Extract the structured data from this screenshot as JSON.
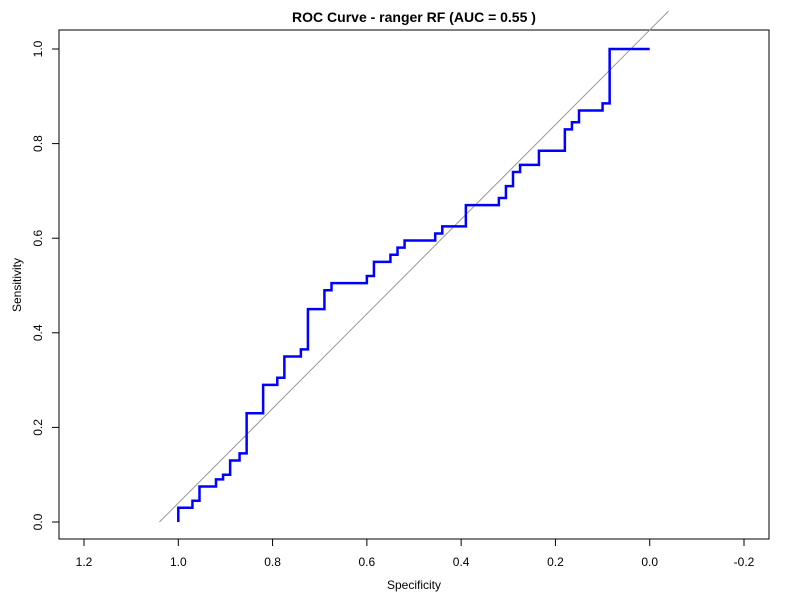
{
  "chart_data": {
    "type": "line",
    "title": "ROC Curve - ranger RF (AUC = 0.55 )",
    "xlabel": "Specificity",
    "ylabel": "Sensitivity",
    "xlim": [
      1.2,
      -0.2
    ],
    "ylim": [
      0.0,
      1.0
    ],
    "x_ticks": [
      1.2,
      1.0,
      0.8,
      0.6,
      0.4,
      0.2,
      0.0,
      -0.2
    ],
    "x_tick_labels": [
      "1.2",
      "1.0",
      "0.8",
      "0.6",
      "0.4",
      "0.2",
      "0.0",
      "-0.2"
    ],
    "y_ticks": [
      0.0,
      0.2,
      0.4,
      0.6,
      0.8,
      1.0
    ],
    "y_tick_labels": [
      "0.0",
      "0.2",
      "0.4",
      "0.6",
      "0.8",
      "1.0"
    ],
    "grid": false,
    "diagonal": {
      "from": [
        1.04,
        0.0
      ],
      "to": [
        -0.04,
        1.08
      ],
      "color": "#999999"
    },
    "series": [
      {
        "color": "#0000ff",
        "points": [
          [
            1.0,
            0.0
          ],
          [
            1.0,
            0.03
          ],
          [
            0.97,
            0.03
          ],
          [
            0.97,
            0.045
          ],
          [
            0.955,
            0.045
          ],
          [
            0.955,
            0.075
          ],
          [
            0.92,
            0.075
          ],
          [
            0.92,
            0.09
          ],
          [
            0.905,
            0.09
          ],
          [
            0.905,
            0.1
          ],
          [
            0.89,
            0.1
          ],
          [
            0.89,
            0.13
          ],
          [
            0.87,
            0.13
          ],
          [
            0.87,
            0.145
          ],
          [
            0.855,
            0.145
          ],
          [
            0.855,
            0.23
          ],
          [
            0.82,
            0.23
          ],
          [
            0.82,
            0.29
          ],
          [
            0.79,
            0.29
          ],
          [
            0.79,
            0.305
          ],
          [
            0.775,
            0.305
          ],
          [
            0.775,
            0.35
          ],
          [
            0.74,
            0.35
          ],
          [
            0.74,
            0.365
          ],
          [
            0.725,
            0.365
          ],
          [
            0.725,
            0.45
          ],
          [
            0.69,
            0.45
          ],
          [
            0.69,
            0.49
          ],
          [
            0.675,
            0.49
          ],
          [
            0.675,
            0.505
          ],
          [
            0.6,
            0.505
          ],
          [
            0.6,
            0.52
          ],
          [
            0.585,
            0.52
          ],
          [
            0.585,
            0.55
          ],
          [
            0.55,
            0.55
          ],
          [
            0.55,
            0.565
          ],
          [
            0.535,
            0.565
          ],
          [
            0.535,
            0.58
          ],
          [
            0.52,
            0.58
          ],
          [
            0.52,
            0.595
          ],
          [
            0.455,
            0.595
          ],
          [
            0.455,
            0.61
          ],
          [
            0.44,
            0.61
          ],
          [
            0.44,
            0.625
          ],
          [
            0.39,
            0.625
          ],
          [
            0.39,
            0.67
          ],
          [
            0.32,
            0.67
          ],
          [
            0.32,
            0.685
          ],
          [
            0.305,
            0.685
          ],
          [
            0.305,
            0.71
          ],
          [
            0.29,
            0.71
          ],
          [
            0.29,
            0.74
          ],
          [
            0.275,
            0.74
          ],
          [
            0.275,
            0.755
          ],
          [
            0.235,
            0.755
          ],
          [
            0.235,
            0.785
          ],
          [
            0.18,
            0.785
          ],
          [
            0.18,
            0.83
          ],
          [
            0.165,
            0.83
          ],
          [
            0.165,
            0.845
          ],
          [
            0.15,
            0.845
          ],
          [
            0.15,
            0.87
          ],
          [
            0.1,
            0.87
          ],
          [
            0.1,
            0.885
          ],
          [
            0.085,
            0.885
          ],
          [
            0.085,
            1.0
          ],
          [
            0.0,
            1.0
          ]
        ]
      }
    ]
  }
}
